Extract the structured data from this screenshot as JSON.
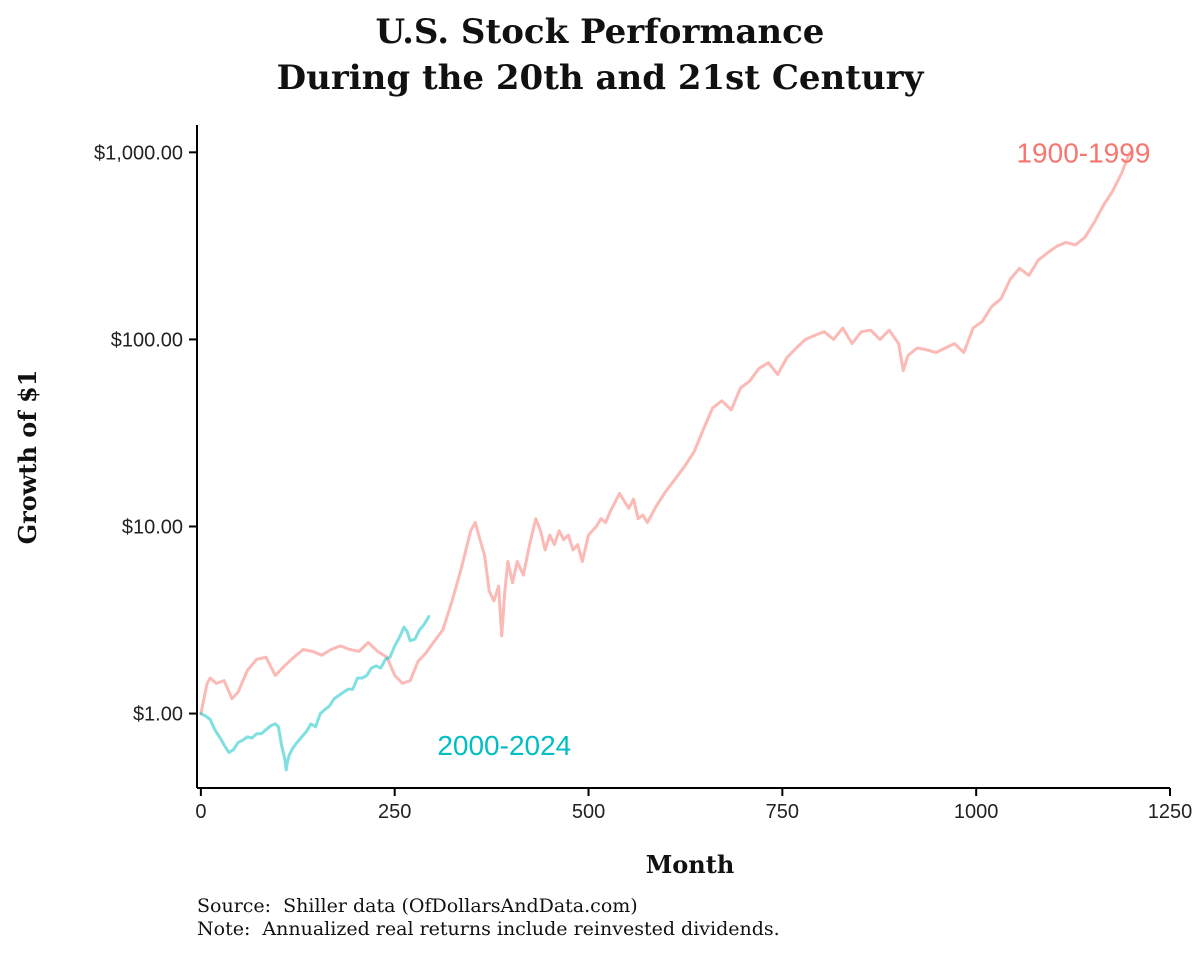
{
  "chart_data": {
    "type": "line",
    "title_lines": [
      "U.S. Stock Performance",
      "During the 20th and 21st Century"
    ],
    "xlabel": "Month",
    "ylabel": "Growth of $1",
    "xlim": [
      -5,
      1250
    ],
    "ylim": [
      0.4,
      1400
    ],
    "y_scale": "log",
    "x_ticks": [
      0,
      250,
      500,
      750,
      1000,
      1250
    ],
    "x_tick_labels": [
      "0",
      "250",
      "500",
      "750",
      "1000",
      "1250"
    ],
    "y_ticks": [
      1,
      10,
      100,
      1000
    ],
    "y_tick_labels": [
      "$1.00",
      "$10.00",
      "$100.00",
      "$1,000.00"
    ],
    "grid": false,
    "legend": "none",
    "series": [
      {
        "name": "1900-1999",
        "color": "#F8766D",
        "x": [
          0,
          8,
          12,
          20,
          30,
          40,
          48,
          60,
          72,
          84,
          96,
          108,
          120,
          132,
          144,
          156,
          168,
          180,
          192,
          204,
          216,
          228,
          240,
          250,
          260,
          270,
          280,
          290,
          300,
          312,
          324,
          336,
          348,
          354,
          360,
          366,
          372,
          378,
          384,
          388,
          392,
          396,
          402,
          408,
          416,
          424,
          432,
          438,
          444,
          450,
          456,
          462,
          468,
          474,
          480,
          486,
          492,
          500,
          510,
          516,
          522,
          528,
          540,
          552,
          558,
          564,
          570,
          576,
          588,
          600,
          612,
          624,
          636,
          648,
          660,
          672,
          684,
          696,
          708,
          720,
          732,
          744,
          756,
          768,
          780,
          792,
          804,
          816,
          828,
          840,
          852,
          864,
          876,
          888,
          900,
          906,
          912,
          924,
          936,
          948,
          960,
          972,
          984,
          996,
          1008,
          1020,
          1032,
          1044,
          1056,
          1068,
          1080,
          1092,
          1104,
          1116,
          1128,
          1140,
          1152,
          1164,
          1176,
          1188,
          1196,
          1199
        ],
        "values": [
          1.0,
          1.45,
          1.55,
          1.45,
          1.5,
          1.2,
          1.3,
          1.7,
          1.95,
          2.0,
          1.6,
          1.8,
          2.0,
          2.2,
          2.15,
          2.05,
          2.2,
          2.3,
          2.2,
          2.15,
          2.4,
          2.15,
          2.0,
          1.6,
          1.45,
          1.5,
          1.9,
          2.1,
          2.4,
          2.8,
          4.0,
          6.0,
          9.5,
          10.5,
          8.5,
          7.0,
          4.5,
          4.0,
          4.8,
          2.6,
          4.5,
          6.5,
          5.0,
          6.5,
          5.5,
          8.0,
          11.0,
          9.5,
          7.5,
          9.0,
          8.0,
          9.5,
          8.5,
          9.0,
          7.5,
          8.0,
          6.5,
          9.0,
          10.0,
          11.0,
          10.5,
          12.0,
          15.0,
          12.5,
          14.0,
          11.0,
          11.5,
          10.5,
          13.0,
          15.5,
          18.0,
          21.0,
          25.0,
          33.0,
          43.0,
          47.0,
          42.0,
          55.0,
          60.0,
          70.0,
          75.0,
          65.0,
          80.0,
          90.0,
          100.0,
          105.0,
          110.0,
          100.0,
          115.0,
          95.0,
          110.0,
          112.0,
          100.0,
          112.0,
          95.0,
          68.0,
          82.0,
          90.0,
          88.0,
          85.0,
          90.0,
          95.0,
          85.0,
          115.0,
          125.0,
          150.0,
          165.0,
          210.0,
          240.0,
          220.0,
          265.0,
          290.0,
          315.0,
          330.0,
          320.0,
          350.0,
          420.0,
          520.0,
          620.0,
          780.0,
          950.0,
          1000.0
        ]
      },
      {
        "name": "2000-2024",
        "color": "#00BFC4",
        "x": [
          0,
          6,
          12,
          18,
          24,
          30,
          36,
          42,
          48,
          54,
          60,
          66,
          72,
          78,
          84,
          90,
          96,
          100,
          104,
          108,
          110,
          112,
          114,
          118,
          124,
          130,
          136,
          142,
          148,
          154,
          160,
          166,
          172,
          178,
          184,
          190,
          196,
          202,
          208,
          214,
          220,
          226,
          232,
          238,
          244,
          250,
          256,
          262,
          266,
          270,
          276,
          282,
          288,
          294
        ],
        "values": [
          1.0,
          0.97,
          0.93,
          0.82,
          0.75,
          0.68,
          0.62,
          0.64,
          0.7,
          0.72,
          0.75,
          0.74,
          0.78,
          0.78,
          0.82,
          0.86,
          0.88,
          0.85,
          0.68,
          0.58,
          0.5,
          0.56,
          0.6,
          0.65,
          0.7,
          0.75,
          0.8,
          0.88,
          0.85,
          1.0,
          1.05,
          1.1,
          1.2,
          1.25,
          1.3,
          1.35,
          1.35,
          1.55,
          1.55,
          1.6,
          1.75,
          1.8,
          1.75,
          1.95,
          2.0,
          2.3,
          2.55,
          2.9,
          2.75,
          2.45,
          2.5,
          2.8,
          3.0,
          3.3
        ]
      }
    ],
    "annotations": [
      {
        "text": "1900-1999",
        "x": 1052,
        "y": 1000,
        "color": "#F8766D"
      },
      {
        "text": "2000-2024",
        "x": 305,
        "y": 0.68,
        "color": "#00BFC4"
      }
    ],
    "footnotes": [
      "Source:  Shiller data (OfDollarsAndData.com)",
      "Note:  Annualized real returns include reinvested dividends."
    ]
  }
}
